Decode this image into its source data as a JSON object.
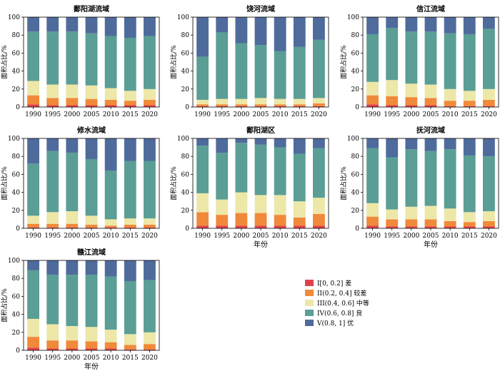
{
  "colors": {
    "I": "#e0424b",
    "II": "#f08a3a",
    "III": "#ede7a8",
    "IV": "#5a9e95",
    "V": "#4f6b9c"
  },
  "legend": [
    {
      "key": "I",
      "label": "I[0, 0.2] 差"
    },
    {
      "key": "II",
      "label": "II(0.2, 0.4] 较差"
    },
    {
      "key": "III",
      "label": "III(0.4, 0.6] 中等"
    },
    {
      "key": "IV",
      "label": "IV(0.6, 0.8] 良"
    },
    {
      "key": "V",
      "label": "V(0.8, 1] 优"
    }
  ],
  "chart_data": [
    {
      "type": "bar",
      "stacked": true,
      "title": "鄱阳湖流域",
      "categories": [
        "1990",
        "1995",
        "2000",
        "2005",
        "2010",
        "2015",
        "2020"
      ],
      "ylabel": "面积占比/%",
      "xlabel": "",
      "ylim": [
        0,
        100
      ],
      "yticks": [
        0,
        20,
        40,
        60,
        80,
        100
      ],
      "series": [
        {
          "name": "I[0, 0.2] 差",
          "key": "I",
          "values": [
            3,
            2,
            2,
            2,
            2,
            2,
            2
          ]
        },
        {
          "name": "II(0.2, 0.4] 较差",
          "key": "II",
          "values": [
            10,
            8,
            8,
            7,
            6,
            5,
            6
          ]
        },
        {
          "name": "III(0.4, 0.6] 中等",
          "key": "III",
          "values": [
            16,
            15,
            15,
            15,
            13,
            11,
            12
          ]
        },
        {
          "name": "IV(0.6, 0.8] 良",
          "key": "IV",
          "values": [
            55,
            59,
            59,
            58,
            58,
            59,
            59
          ]
        },
        {
          "name": "V(0.8, 1] 优",
          "key": "V",
          "values": [
            16,
            16,
            16,
            18,
            21,
            23,
            21
          ]
        }
      ]
    },
    {
      "type": "bar",
      "stacked": true,
      "title": "饶河流域",
      "categories": [
        "1990",
        "1995",
        "2000",
        "2005",
        "2010",
        "2015",
        "2020"
      ],
      "ylabel": "面积占比/%",
      "xlabel": "",
      "ylim": [
        0,
        100
      ],
      "yticks": [
        0,
        20,
        40,
        60,
        80,
        100
      ],
      "series": [
        {
          "name": "I[0, 0.2] 差",
          "key": "I",
          "values": [
            1,
            1,
            1,
            1,
            1,
            1,
            1
          ]
        },
        {
          "name": "II(0.2, 0.4] 较差",
          "key": "II",
          "values": [
            2,
            2,
            2,
            2,
            2,
            2,
            3
          ]
        },
        {
          "name": "III(0.4, 0.6] 中等",
          "key": "III",
          "values": [
            5,
            6,
            6,
            7,
            6,
            6,
            6
          ]
        },
        {
          "name": "IV(0.6, 0.8] 良",
          "key": "IV",
          "values": [
            48,
            74,
            62,
            59,
            53,
            58,
            65
          ]
        },
        {
          "name": "V(0.8, 1] 优",
          "key": "V",
          "values": [
            44,
            17,
            29,
            31,
            38,
            33,
            25
          ]
        }
      ]
    },
    {
      "type": "bar",
      "stacked": true,
      "title": "信江流域",
      "categories": [
        "1990",
        "1995",
        "2000",
        "2005",
        "2010",
        "2015",
        "2020"
      ],
      "ylabel": "面积占比/%",
      "xlabel": "",
      "ylim": [
        0,
        100
      ],
      "yticks": [
        0,
        20,
        40,
        60,
        80,
        100
      ],
      "series": [
        {
          "name": "I[0, 0.2] 差",
          "key": "I",
          "values": [
            3,
            2,
            2,
            2,
            1,
            1,
            1
          ]
        },
        {
          "name": "II(0.2, 0.4] 较差",
          "key": "II",
          "values": [
            10,
            10,
            9,
            8,
            6,
            6,
            7
          ]
        },
        {
          "name": "III(0.4, 0.6] 中等",
          "key": "III",
          "values": [
            15,
            18,
            15,
            15,
            13,
            11,
            12
          ]
        },
        {
          "name": "IV(0.6, 0.8] 良",
          "key": "IV",
          "values": [
            53,
            58,
            58,
            59,
            62,
            63,
            67
          ]
        },
        {
          "name": "V(0.8, 1] 优",
          "key": "V",
          "values": [
            19,
            12,
            16,
            16,
            18,
            19,
            13
          ]
        }
      ]
    },
    {
      "type": "bar",
      "stacked": true,
      "title": "修水流域",
      "categories": [
        "1990",
        "1995",
        "2000",
        "2005",
        "2010",
        "2015",
        "2020"
      ],
      "ylabel": "面积占比/%",
      "xlabel": "",
      "ylim": [
        0,
        100
      ],
      "yticks": [
        0,
        20,
        40,
        60,
        80,
        100
      ],
      "series": [
        {
          "name": "I[0, 0.2] 差",
          "key": "I",
          "values": [
            1,
            1,
            1,
            1,
            1,
            1,
            1
          ]
        },
        {
          "name": "II(0.2, 0.4] 较差",
          "key": "II",
          "values": [
            4,
            4,
            4,
            3,
            2,
            3,
            3
          ]
        },
        {
          "name": "III(0.4, 0.6] 中等",
          "key": "III",
          "values": [
            9,
            13,
            14,
            10,
            7,
            7,
            7
          ]
        },
        {
          "name": "IV(0.6, 0.8] 良",
          "key": "IV",
          "values": [
            58,
            68,
            65,
            63,
            54,
            64,
            64
          ]
        },
        {
          "name": "V(0.8, 1] 优",
          "key": "V",
          "values": [
            28,
            14,
            16,
            23,
            36,
            25,
            25
          ]
        }
      ]
    },
    {
      "type": "bar",
      "stacked": true,
      "title": "鄱阳湖区",
      "categories": [
        "1990",
        "1995",
        "2000",
        "2005",
        "2010",
        "2015",
        "2020"
      ],
      "ylabel": "面积占比/%",
      "xlabel": "年份",
      "ylim": [
        0,
        100
      ],
      "yticks": [
        0,
        20,
        40,
        60,
        80,
        100
      ],
      "series": [
        {
          "name": "I[0, 0.2] 差",
          "key": "I",
          "values": [
            3,
            3,
            3,
            3,
            3,
            3,
            3
          ]
        },
        {
          "name": "II(0.2, 0.4] 较差",
          "key": "II",
          "values": [
            15,
            12,
            14,
            14,
            12,
            9,
            13
          ]
        },
        {
          "name": "III(0.4, 0.6] 中等",
          "key": "III",
          "values": [
            21,
            17,
            23,
            20,
            22,
            18,
            18
          ]
        },
        {
          "name": "IV(0.6, 0.8] 良",
          "key": "IV",
          "values": [
            53,
            52,
            55,
            56,
            53,
            53,
            55
          ]
        },
        {
          "name": "V(0.8, 1] 优",
          "key": "V",
          "values": [
            8,
            16,
            5,
            7,
            10,
            17,
            11
          ]
        }
      ]
    },
    {
      "type": "bar",
      "stacked": true,
      "title": "抚河流域",
      "categories": [
        "1990",
        "1995",
        "2000",
        "2005",
        "2010",
        "2015",
        "2020"
      ],
      "ylabel": "面积占比/%",
      "xlabel": "年份",
      "ylim": [
        0,
        100
      ],
      "yticks": [
        0,
        20,
        40,
        60,
        80,
        100
      ],
      "series": [
        {
          "name": "I[0, 0.2] 差",
          "key": "I",
          "values": [
            3,
            2,
            2,
            2,
            2,
            2,
            2
          ]
        },
        {
          "name": "II(0.2, 0.4] 较差",
          "key": "II",
          "values": [
            10,
            8,
            8,
            8,
            6,
            5,
            6
          ]
        },
        {
          "name": "III(0.4, 0.6] 中等",
          "key": "III",
          "values": [
            15,
            11,
            14,
            15,
            14,
            11,
            11
          ]
        },
        {
          "name": "IV(0.6, 0.8] 良",
          "key": "IV",
          "values": [
            61,
            58,
            64,
            61,
            66,
            63,
            61
          ]
        },
        {
          "name": "V(0.8, 1] 优",
          "key": "V",
          "values": [
            11,
            21,
            12,
            14,
            12,
            19,
            20
          ]
        }
      ]
    },
    {
      "type": "bar",
      "stacked": true,
      "title": "赣江流域",
      "categories": [
        "1990",
        "1995",
        "2000",
        "2005",
        "2010",
        "2015",
        "2020"
      ],
      "ylabel": "面积占比/%",
      "xlabel": "年份",
      "ylim": [
        0,
        100
      ],
      "yticks": [
        0,
        20,
        40,
        60,
        80,
        100
      ],
      "series": [
        {
          "name": "I[0, 0.2] 差",
          "key": "I",
          "values": [
            3,
            2,
            2,
            2,
            2,
            1,
            1
          ]
        },
        {
          "name": "II(0.2, 0.4] 较差",
          "key": "II",
          "values": [
            12,
            9,
            9,
            8,
            7,
            5,
            6
          ]
        },
        {
          "name": "III(0.4, 0.6] 中等",
          "key": "III",
          "values": [
            20,
            18,
            16,
            16,
            14,
            12,
            13
          ]
        },
        {
          "name": "IV(0.6, 0.8] 良",
          "key": "IV",
          "values": [
            54,
            55,
            57,
            58,
            59,
            59,
            58
          ]
        },
        {
          "name": "V(0.8, 1] 优",
          "key": "V",
          "values": [
            11,
            16,
            16,
            16,
            18,
            23,
            22
          ]
        }
      ]
    }
  ]
}
